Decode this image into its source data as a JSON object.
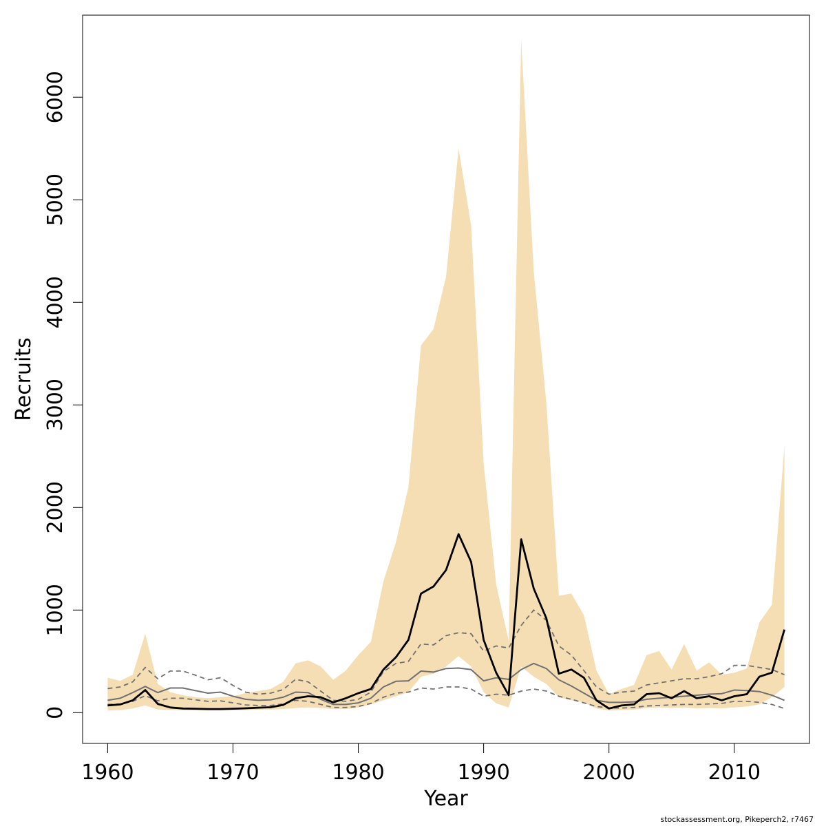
{
  "chart_data": {
    "type": "area",
    "xlabel": "Year",
    "ylabel": "Recruits",
    "xlim": [
      1958,
      2016
    ],
    "ylim": [
      -300,
      6800
    ],
    "x_ticks": [
      1960,
      1970,
      1980,
      1990,
      2000,
      2010
    ],
    "y_ticks": [
      0,
      1000,
      2000,
      3000,
      4000,
      5000,
      6000
    ],
    "credit": "stockassessment.org, Pikeperch2, r7467",
    "colors": {
      "band": "#f5deb3",
      "estimate": "#000000",
      "secondary": "#707070",
      "secondary_dashed": "#707070",
      "axis": "#000000"
    },
    "years": [
      1960,
      1961,
      1962,
      1963,
      1964,
      1965,
      1966,
      1967,
      1968,
      1969,
      1970,
      1971,
      1972,
      1973,
      1974,
      1975,
      1976,
      1977,
      1978,
      1979,
      1980,
      1981,
      1982,
      1983,
      1984,
      1985,
      1986,
      1987,
      1988,
      1989,
      1990,
      1991,
      1992,
      1993,
      1994,
      1995,
      1996,
      1997,
      1998,
      1999,
      2000,
      2001,
      2002,
      2003,
      2004,
      2005,
      2006,
      2007,
      2008,
      2009,
      2010,
      2011,
      2012,
      2013,
      2014
    ],
    "series": [
      {
        "role": "confidence_band",
        "lower": [
          20,
          25,
          40,
          70,
          30,
          25,
          22,
          20,
          20,
          20,
          22,
          25,
          28,
          30,
          35,
          45,
          50,
          45,
          35,
          35,
          50,
          80,
          120,
          160,
          200,
          350,
          380,
          450,
          550,
          450,
          200,
          90,
          50,
          450,
          350,
          280,
          150,
          120,
          100,
          40,
          20,
          25,
          30,
          45,
          50,
          45,
          50,
          40,
          45,
          40,
          50,
          60,
          80,
          150,
          250
        ],
        "upper": [
          340,
          310,
          370,
          770,
          280,
          200,
          170,
          150,
          140,
          150,
          160,
          190,
          210,
          230,
          300,
          480,
          510,
          450,
          320,
          410,
          560,
          690,
          1280,
          1660,
          2200,
          3580,
          3740,
          4250,
          5500,
          4750,
          2430,
          1250,
          700,
          6560,
          4300,
          3020,
          1140,
          1160,
          950,
          410,
          180,
          230,
          270,
          560,
          600,
          420,
          670,
          410,
          490,
          370,
          390,
          430,
          880,
          1050,
          2600
        ]
      },
      {
        "role": "estimate",
        "values": [
          70,
          80,
          120,
          220,
          85,
          50,
          40,
          38,
          35,
          35,
          38,
          42,
          48,
          52,
          75,
          140,
          160,
          150,
          100,
          140,
          190,
          230,
          420,
          540,
          710,
          1160,
          1230,
          1390,
          1740,
          1470,
          710,
          390,
          170,
          1690,
          1210,
          920,
          380,
          420,
          340,
          120,
          40,
          70,
          80,
          180,
          190,
          140,
          210,
          140,
          160,
          120,
          160,
          180,
          350,
          390,
          810
        ]
      },
      {
        "role": "secondary",
        "values": [
          120,
          140,
          195,
          255,
          195,
          240,
          240,
          215,
          190,
          200,
          160,
          130,
          120,
          125,
          150,
          200,
          195,
          130,
          80,
          80,
          95,
          140,
          250,
          305,
          310,
          405,
          395,
          430,
          435,
          420,
          310,
          340,
          325,
          420,
          480,
          430,
          320,
          260,
          190,
          120,
          100,
          100,
          105,
          130,
          140,
          150,
          160,
          170,
          180,
          185,
          220,
          215,
          205,
          170,
          120
        ]
      },
      {
        "role": "secondary_dashed_upper",
        "values": [
          235,
          250,
          300,
          440,
          330,
          405,
          405,
          365,
          320,
          340,
          265,
          200,
          180,
          190,
          225,
          325,
          300,
          210,
          120,
          110,
          130,
          200,
          400,
          480,
          500,
          670,
          660,
          750,
          780,
          770,
          600,
          650,
          630,
          850,
          1000,
          900,
          650,
          560,
          410,
          250,
          180,
          200,
          210,
          270,
          290,
          310,
          330,
          330,
          350,
          380,
          460,
          460,
          440,
          420,
          370
        ]
      },
      {
        "role": "secondary_dashed_lower",
        "values": [
          80,
          85,
          110,
          165,
          115,
          140,
          140,
          125,
          110,
          115,
          95,
          75,
          70,
          70,
          85,
          120,
          110,
          80,
          50,
          50,
          60,
          90,
          150,
          190,
          200,
          240,
          230,
          250,
          250,
          230,
          160,
          180,
          170,
          210,
          230,
          210,
          160,
          130,
          95,
          60,
          45,
          45,
          50,
          65,
          70,
          75,
          80,
          80,
          85,
          90,
          110,
          110,
          100,
          80,
          40
        ]
      }
    ]
  }
}
